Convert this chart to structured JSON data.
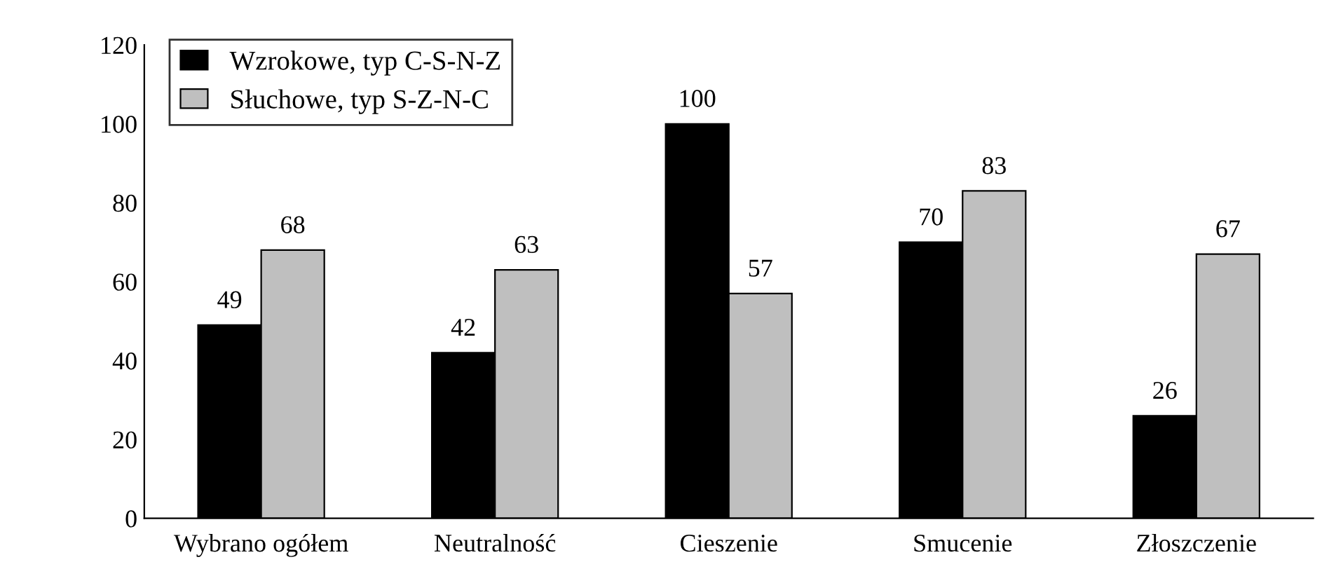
{
  "chart_data": {
    "type": "bar",
    "categories": [
      "Wybrano ogółem",
      "Neutralność",
      "Cieszenie",
      "Smucenie",
      "Złoszczenie"
    ],
    "series": [
      {
        "name": "Wzrokowe, typ C-S-N-Z",
        "color": "#000000",
        "values": [
          49,
          42,
          100,
          70,
          26
        ]
      },
      {
        "name": "Słuchowe, typ S-Z-N-C",
        "color": "#bfbfbf",
        "values": [
          68,
          63,
          57,
          83,
          67
        ]
      }
    ],
    "ylim": [
      0,
      120
    ],
    "yticks": [
      0,
      20,
      40,
      60,
      80,
      100,
      120
    ],
    "grid": false,
    "legend": "top left",
    "data_labels": true
  }
}
